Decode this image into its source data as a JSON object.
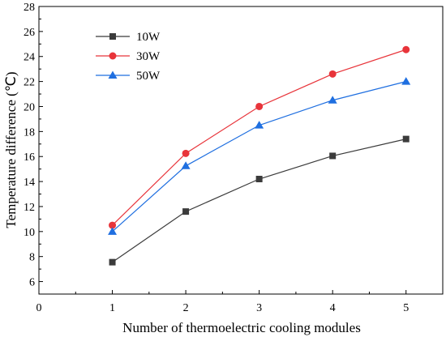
{
  "chart_data": {
    "type": "line",
    "title": "",
    "xlabel": "Number of thermoelectric cooling modules",
    "ylabel": "Temperature difference (℃)",
    "xlim": [
      0,
      5.5
    ],
    "ylim": [
      5,
      28
    ],
    "x_ticks": [
      0,
      1,
      2,
      3,
      4,
      5
    ],
    "y_ticks": [
      6,
      8,
      10,
      12,
      14,
      16,
      18,
      20,
      22,
      24,
      26,
      28
    ],
    "grid": false,
    "legend_position": "top-left",
    "x": [
      1,
      2,
      3,
      4,
      5
    ],
    "series": [
      {
        "name": "10W",
        "values": [
          7.55,
          11.6,
          14.2,
          16.05,
          17.4
        ],
        "color": "#3b3b3b",
        "marker": "square"
      },
      {
        "name": "30W",
        "values": [
          10.5,
          16.25,
          20.0,
          22.6,
          24.55
        ],
        "color": "#e8343a",
        "marker": "circle"
      },
      {
        "name": "50W",
        "values": [
          10.0,
          15.25,
          18.5,
          20.5,
          22.0
        ],
        "color": "#1f6fe0",
        "marker": "triangle"
      }
    ]
  }
}
